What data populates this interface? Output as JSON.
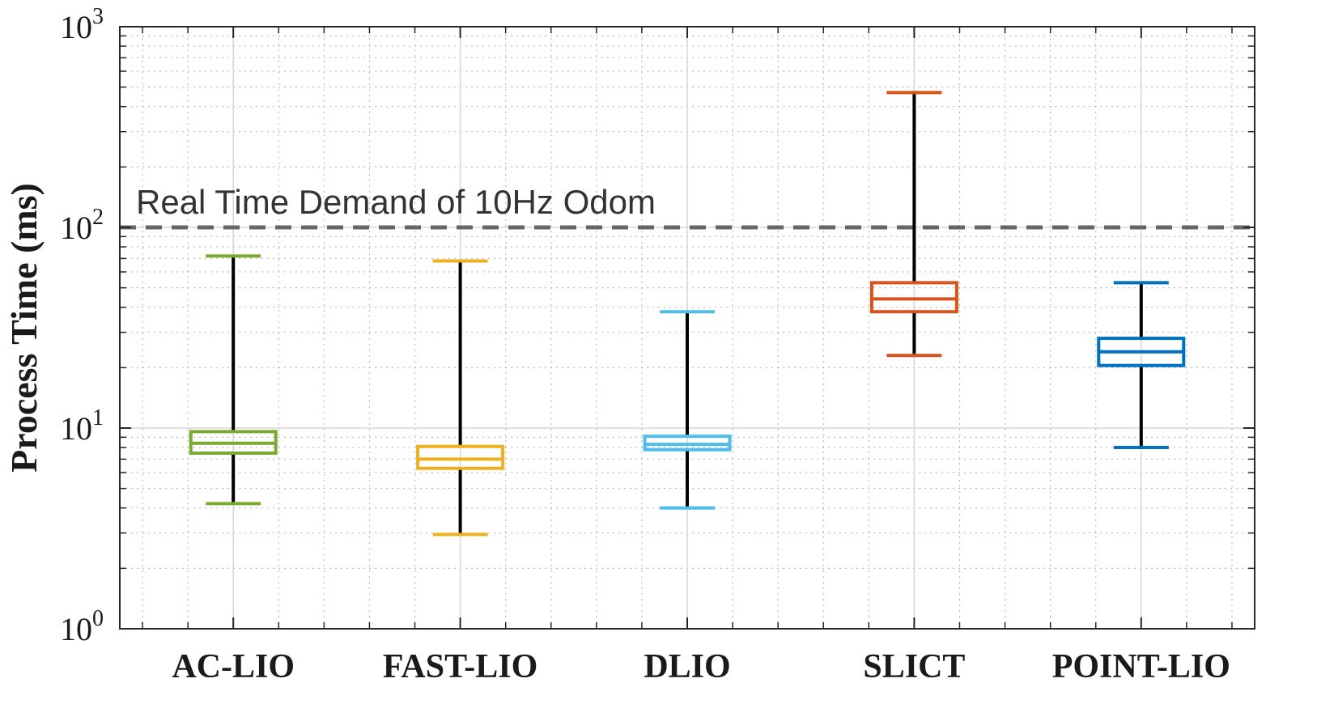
{
  "chart_data": {
    "type": "boxplot",
    "ylabel": "Process Time (ms)",
    "yscale": "log",
    "ylim": [
      1,
      1000
    ],
    "ytick_labels": [
      {
        "base": "10",
        "exp": "0"
      },
      {
        "base": "10",
        "exp": "1"
      },
      {
        "base": "10",
        "exp": "2"
      },
      {
        "base": "10",
        "exp": "3"
      }
    ],
    "grid": true,
    "reference_line": {
      "value": 100,
      "label": "Real Time Demand of 10Hz Odom",
      "color": "#666666"
    },
    "categories": [
      "AC-LIO",
      "FAST-LIO",
      "DLIO",
      "SLICT",
      "POINT-LIO"
    ],
    "boxes": [
      {
        "name": "AC-LIO",
        "whisker_low": 4.2,
        "q1": 7.5,
        "median": 8.4,
        "q3": 9.6,
        "whisker_high": 72,
        "color": "#77AC30"
      },
      {
        "name": "FAST-LIO",
        "whisker_low": 2.95,
        "q1": 6.3,
        "median": 7.0,
        "q3": 8.1,
        "whisker_high": 68,
        "color": "#EDB120"
      },
      {
        "name": "DLIO",
        "whisker_low": 4.0,
        "q1": 7.8,
        "median": 8.3,
        "q3": 9.1,
        "whisker_high": 38,
        "color": "#4DBEEE"
      },
      {
        "name": "SLICT",
        "whisker_low": 23,
        "q1": 38,
        "median": 44,
        "q3": 53,
        "whisker_high": 470,
        "color": "#D95319"
      },
      {
        "name": "POINT-LIO",
        "whisker_low": 8.0,
        "q1": 20.5,
        "median": 24,
        "q3": 28,
        "whisker_high": 53,
        "color": "#0072BD"
      }
    ]
  }
}
